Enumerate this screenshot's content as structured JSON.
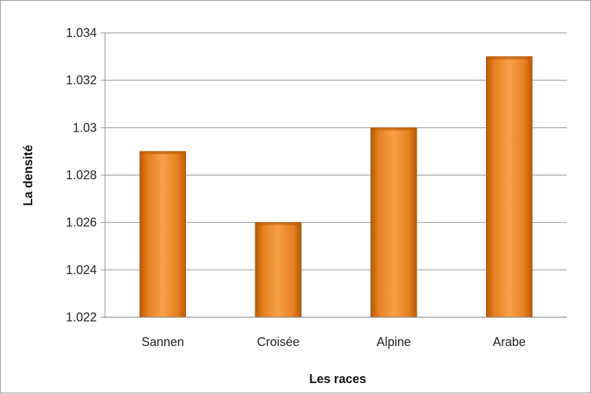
{
  "chart_data": {
    "type": "bar",
    "title": "",
    "xlabel": "Les races",
    "ylabel": "La densité",
    "categories": [
      "Sannen",
      "Croisée",
      "Alpine",
      "Arabe"
    ],
    "values": [
      1.029,
      1.026,
      1.03,
      1.033
    ],
    "ylim": [
      1.022,
      1.034
    ],
    "yticks": [
      "1.022",
      "1.024",
      "1.026",
      "1.028",
      "1.03",
      "1.032",
      "1.034"
    ],
    "grid": true,
    "legend": "none",
    "colors": {
      "bar_light": "#f6a04a",
      "bar_mid": "#e8801f",
      "bar_dark": "#b65a0a",
      "grid": "#8a8a8a"
    }
  }
}
